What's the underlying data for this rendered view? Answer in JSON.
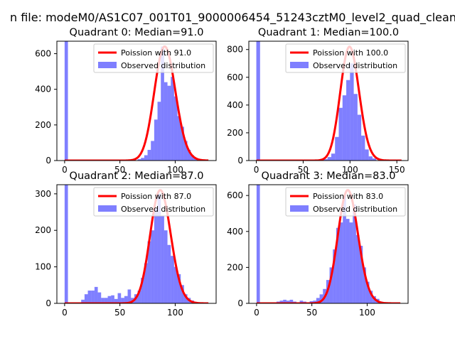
{
  "figure": {
    "suptitle": "n file: modeM0/AS1C07_001T01_9000006454_51243cztM0_level2_quad_clean"
  },
  "chart_data": [
    {
      "type": "bar",
      "title": "Quadrant 0: Median=91.0",
      "xlabel": "",
      "ylabel": "",
      "xlim": [
        -7,
        137
      ],
      "ylim": [
        0,
        670
      ],
      "x_ticks": [
        0,
        50,
        100
      ],
      "y_ticks": [
        0,
        200,
        400,
        600
      ],
      "legend": {
        "position": "top-right",
        "entries": [
          "Poission with 91.0",
          "Observed distribution"
        ]
      },
      "colors": {
        "histogram": "#0000ff",
        "poisson": "#ff0000"
      },
      "series": [
        {
          "name": "Observed distribution",
          "bins": [
            [
              0,
              3,
              670
            ],
            [
              66,
              69,
              8
            ],
            [
              69,
              72,
              15
            ],
            [
              72,
              75,
              30
            ],
            [
              75,
              78,
              60
            ],
            [
              78,
              81,
              110
            ],
            [
              81,
              84,
              230
            ],
            [
              84,
              87,
              330
            ],
            [
              87,
              90,
              640
            ],
            [
              90,
              93,
              440
            ],
            [
              93,
              96,
              420
            ],
            [
              96,
              99,
              470
            ],
            [
              99,
              102,
              360
            ],
            [
              102,
              105,
              250
            ],
            [
              105,
              108,
              190
            ],
            [
              108,
              111,
              110
            ],
            [
              111,
              114,
              60
            ],
            [
              114,
              117,
              30
            ],
            [
              117,
              120,
              15
            ],
            [
              120,
              123,
              10
            ]
          ]
        },
        {
          "name": "Poission with 91.0",
          "mean": 91.0,
          "peak": 640,
          "x_range": [
            0,
            130
          ]
        }
      ]
    },
    {
      "type": "bar",
      "title": "Quadrant 1: Median=100.0",
      "xlabel": "",
      "ylabel": "",
      "xlim": [
        -8,
        162
      ],
      "ylim": [
        0,
        860
      ],
      "x_ticks": [
        0,
        50,
        100,
        150
      ],
      "y_ticks": [
        0,
        200,
        400,
        600,
        800
      ],
      "legend": {
        "position": "top-right",
        "entries": [
          "Poission with 100.0",
          "Observed distribution"
        ]
      },
      "colors": {
        "histogram": "#0000ff",
        "poisson": "#ff0000"
      },
      "series": [
        {
          "name": "Observed distribution",
          "bins": [
            [
              0,
              4,
              860
            ],
            [
              72,
              76,
              10
            ],
            [
              76,
              80,
              25
            ],
            [
              80,
              84,
              50
            ],
            [
              84,
              88,
              170
            ],
            [
              88,
              92,
              380
            ],
            [
              92,
              96,
              470
            ],
            [
              96,
              100,
              580
            ],
            [
              100,
              104,
              700
            ],
            [
              104,
              108,
              480
            ],
            [
              108,
              112,
              330
            ],
            [
              112,
              116,
              180
            ],
            [
              116,
              120,
              80
            ],
            [
              120,
              124,
              30
            ],
            [
              124,
              128,
              15
            ]
          ]
        },
        {
          "name": "Poission with 100.0",
          "mean": 100.0,
          "peak": 820,
          "x_range": [
            0,
            155
          ]
        }
      ]
    },
    {
      "type": "bar",
      "title": "Quadrant 2: Median=87.0",
      "xlabel": "",
      "ylabel": "",
      "xlim": [
        -7,
        137
      ],
      "ylim": [
        0,
        325
      ],
      "x_ticks": [
        0,
        50,
        100
      ],
      "y_ticks": [
        0,
        100,
        200,
        300
      ],
      "legend": {
        "position": "top-right",
        "entries": [
          "Poission with 87.0",
          "Observed distribution"
        ]
      },
      "colors": {
        "histogram": "#0000ff",
        "poisson": "#ff0000"
      },
      "series": [
        {
          "name": "Observed distribution",
          "bins": [
            [
              0,
              3,
              325
            ],
            [
              15,
              18,
              10
            ],
            [
              18,
              21,
              25
            ],
            [
              21,
              24,
              35
            ],
            [
              24,
              27,
              35
            ],
            [
              27,
              30,
              45
            ],
            [
              30,
              33,
              30
            ],
            [
              33,
              36,
              15
            ],
            [
              36,
              39,
              15
            ],
            [
              39,
              42,
              20
            ],
            [
              42,
              45,
              22
            ],
            [
              45,
              48,
              12
            ],
            [
              48,
              51,
              28
            ],
            [
              51,
              54,
              15
            ],
            [
              54,
              57,
              20
            ],
            [
              57,
              60,
              38
            ],
            [
              60,
              63,
              15
            ],
            [
              63,
              66,
              25
            ],
            [
              66,
              69,
              35
            ],
            [
              69,
              72,
              70
            ],
            [
              72,
              75,
              110
            ],
            [
              75,
              78,
              170
            ],
            [
              78,
              81,
              200
            ],
            [
              81,
              84,
              260
            ],
            [
              84,
              87,
              300
            ],
            [
              87,
              90,
              240
            ],
            [
              90,
              93,
              200
            ],
            [
              93,
              96,
              160
            ],
            [
              96,
              99,
              130
            ],
            [
              99,
              102,
              100
            ],
            [
              102,
              105,
              80
            ],
            [
              105,
              108,
              50
            ],
            [
              108,
              111,
              25
            ],
            [
              111,
              114,
              15
            ],
            [
              114,
              117,
              8
            ]
          ]
        },
        {
          "name": "Poission with 87.0",
          "mean": 87.0,
          "peak": 310,
          "x_range": [
            0,
            130
          ]
        }
      ]
    },
    {
      "type": "bar",
      "title": "Quadrant 3: Median=83.0",
      "xlabel": "",
      "ylabel": "",
      "xlim": [
        -7,
        137
      ],
      "ylim": [
        0,
        660
      ],
      "x_ticks": [
        0,
        50,
        100
      ],
      "y_ticks": [
        0,
        200,
        400,
        600
      ],
      "legend": {
        "position": "top-right",
        "entries": [
          "Poission with 83.0",
          "Observed distribution"
        ]
      },
      "colors": {
        "histogram": "#0000ff",
        "poisson": "#ff0000"
      },
      "series": [
        {
          "name": "Observed distribution",
          "bins": [
            [
              0,
              3,
              660
            ],
            [
              18,
              21,
              10
            ],
            [
              21,
              24,
              15
            ],
            [
              24,
              27,
              20
            ],
            [
              27,
              30,
              15
            ],
            [
              30,
              33,
              20
            ],
            [
              33,
              36,
              10
            ],
            [
              36,
              39,
              5
            ],
            [
              39,
              42,
              15
            ],
            [
              42,
              45,
              10
            ],
            [
              45,
              48,
              5
            ],
            [
              48,
              51,
              12
            ],
            [
              51,
              54,
              15
            ],
            [
              54,
              57,
              30
            ],
            [
              57,
              60,
              50
            ],
            [
              60,
              63,
              80
            ],
            [
              63,
              66,
              130
            ],
            [
              66,
              69,
              200
            ],
            [
              69,
              72,
              300
            ],
            [
              72,
              75,
              420
            ],
            [
              75,
              78,
              450
            ],
            [
              78,
              81,
              600
            ],
            [
              81,
              84,
              470
            ],
            [
              84,
              87,
              450
            ],
            [
              87,
              90,
              550
            ],
            [
              90,
              93,
              380
            ],
            [
              93,
              96,
              320
            ],
            [
              96,
              99,
              200
            ],
            [
              99,
              102,
              120
            ],
            [
              102,
              105,
              70
            ],
            [
              105,
              108,
              40
            ],
            [
              108,
              111,
              25
            ],
            [
              111,
              114,
              10
            ]
          ]
        },
        {
          "name": "Poission with 83.0",
          "mean": 83.0,
          "peak": 630,
          "x_range": [
            0,
            130
          ]
        }
      ]
    }
  ]
}
